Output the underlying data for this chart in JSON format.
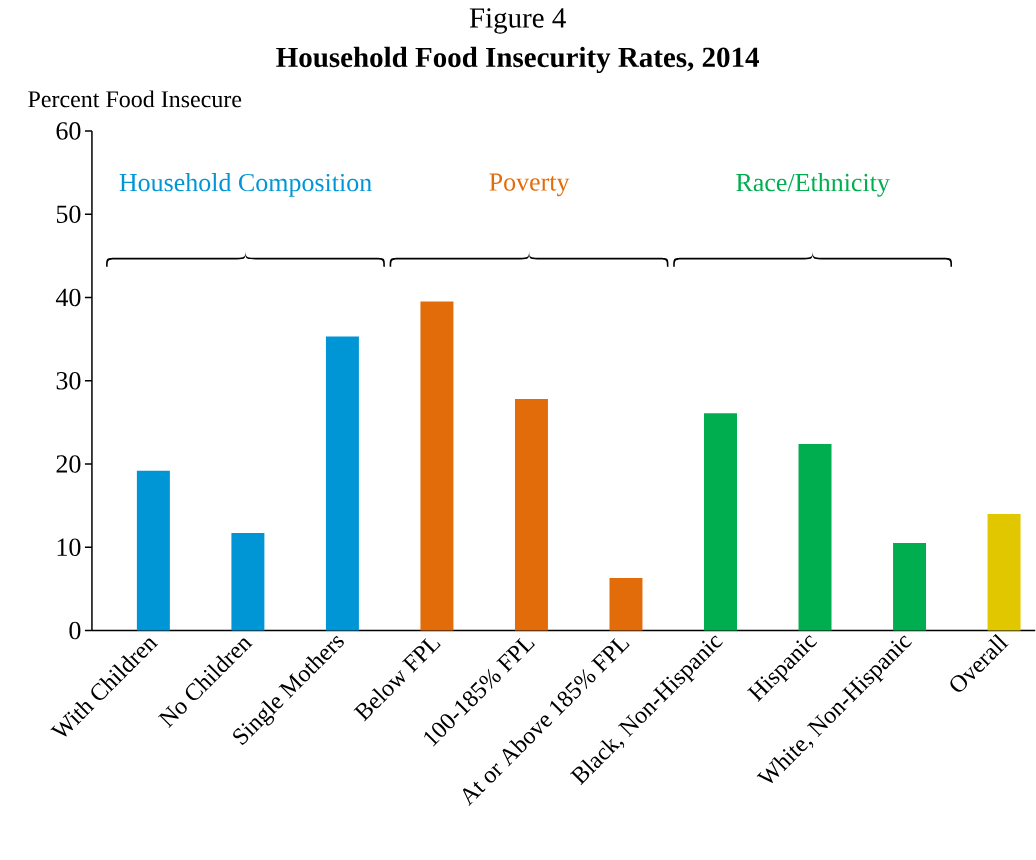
{
  "chart_data": {
    "type": "bar",
    "title": "Figure 4",
    "subtitle": "Household Food Insecurity Rates, 2014",
    "ylabel": "Percent Food Insecure",
    "categories": [
      "With Children",
      "No Children",
      "Single Mothers",
      "Below FPL",
      "100-185% FPL",
      "At or Above 185% FPL",
      "Black, Non-Hispanic",
      "Hispanic",
      "White, Non-Hispanic",
      "Overall"
    ],
    "values": [
      19.2,
      11.7,
      35.3,
      39.5,
      27.8,
      6.3,
      26.1,
      22.4,
      10.5,
      14.0
    ],
    "colors": [
      "#0096d6",
      "#0096d6",
      "#0096d6",
      "#e36c0a",
      "#e36c0a",
      "#e36c0a",
      "#00ae4f",
      "#00ae4f",
      "#00ae4f",
      "#e0c700"
    ],
    "ylim": [
      0,
      60
    ],
    "yticks": [
      0,
      10,
      20,
      30,
      40,
      50,
      60
    ],
    "annotations": [
      "Household Composition",
      "Poverty",
      "Race/Ethnicity"
    ]
  }
}
